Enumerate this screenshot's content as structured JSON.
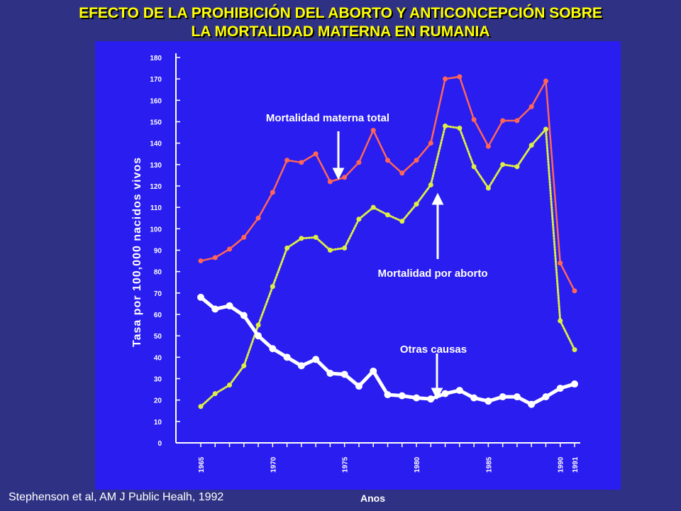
{
  "title": {
    "line1": "EFECTO DE LA PROHIBICIÓN DEL ABORTO Y ANTICONCEPCIÓN SOBRE",
    "line2": "LA MORTALIDAD MATERNA EN RUMANIA"
  },
  "source": "Stephenson et al, AM J Public Healh, 1992",
  "chart_data": {
    "type": "line",
    "title": "EFECTO DE LA PROHIBICIÓN DEL ABORTO Y ANTICONCEPCIÓN SOBRE LA MORTALIDAD MATERNA EN RUMANIA",
    "xlabel": "Anos",
    "ylabel": "Tasa por  100,000 nacidos vivos",
    "ylim": [
      0,
      180
    ],
    "xlim": [
      1965,
      1991
    ],
    "yticks": [
      0,
      10,
      20,
      30,
      40,
      50,
      60,
      70,
      80,
      90,
      100,
      110,
      120,
      130,
      140,
      150,
      160,
      170,
      180
    ],
    "xticks": [
      1965,
      1970,
      1975,
      1980,
      1985,
      1990,
      1991
    ],
    "grid": false,
    "x": [
      1965,
      1966,
      1967,
      1968,
      1969,
      1970,
      1971,
      1972,
      1973,
      1974,
      1975,
      1976,
      1977,
      1978,
      1979,
      1980,
      1981,
      1982,
      1983,
      1984,
      1985,
      1986,
      1987,
      1988,
      1989,
      1990,
      1991
    ],
    "series": [
      {
        "name": "Mortalidad materna total",
        "color": "#ff6655",
        "style": "solid",
        "values": [
          85,
          86.5,
          90.5,
          96,
          105,
          117,
          132,
          131,
          135,
          122,
          124,
          131,
          146,
          132,
          126,
          132,
          140,
          170,
          171,
          151,
          138.5,
          150.5,
          150.5,
          157,
          169,
          84,
          71
        ]
      },
      {
        "name": "Mortalidad por aborto",
        "color": "#ddee44",
        "style": "dotted",
        "values": [
          17,
          23,
          27,
          36,
          55,
          73,
          91,
          95.5,
          96,
          90,
          91,
          104.5,
          110,
          106.5,
          103.5,
          111.5,
          120.5,
          148,
          147,
          129,
          119,
          130,
          129,
          139,
          146.5,
          57,
          43.5
        ]
      },
      {
        "name": "Otras causas",
        "color": "#ffffff",
        "style": "solid",
        "values": [
          68,
          62.5,
          64,
          59.5,
          50,
          44,
          40,
          36,
          39,
          32.5,
          32,
          26.5,
          33.5,
          22.5,
          22,
          21,
          20.5,
          23,
          24.5,
          21,
          19.5,
          21.5,
          21.5,
          18,
          21.5,
          25.5,
          27.5
        ]
      }
    ],
    "annotations": [
      "Mortalidad materna total",
      "Mortalidad por aborto",
      "Otras causas"
    ]
  }
}
